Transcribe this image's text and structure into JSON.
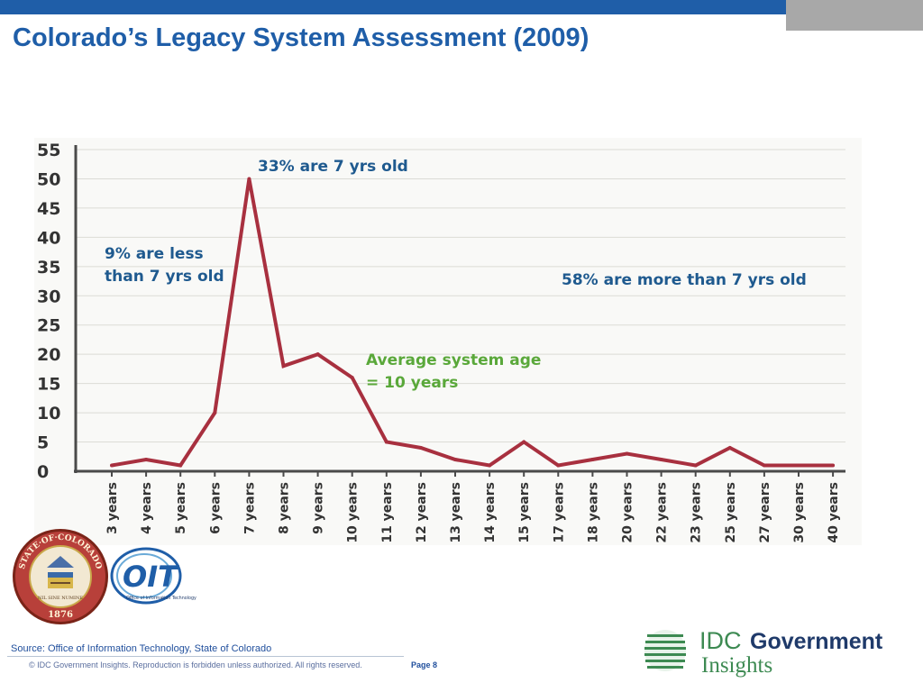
{
  "slide": {
    "title": "Colorado’s Legacy System Assessment (2009)",
    "source": "Source: Office of Information Technology, State of Colorado",
    "copyright": "© IDC Government Insights. Reproduction is forbidden unless authorized. All rights reserved.",
    "page": "Page 8"
  },
  "logos": {
    "seal_text_top": "STATE·OF·COLORADO",
    "seal_motto": "NIL SINE NUMINE",
    "seal_year": "1876",
    "oit_mark": "OIT",
    "oit_caption": "Office of Information Technology",
    "idc_line1": "IDC",
    "idc_line1b": "Government",
    "idc_line2": "Insights"
  },
  "colors": {
    "title_blue": "#1f5ea8",
    "line_red": "#a8303f",
    "annotation_blue": "#1f5a8f",
    "annotation_green": "#5aa83a",
    "idc_green": "#3d8a52"
  },
  "chart_data": {
    "type": "line",
    "categories": [
      "3 years",
      "4 years",
      "5 years",
      "6 years",
      "7 years",
      "8 years",
      "9 years",
      "10 years",
      "11 years",
      "12 years",
      "13 years",
      "14 years",
      "15 years",
      "17 years",
      "18 years",
      "20 years",
      "22 years",
      "23 years",
      "25 years",
      "27 years",
      "30 years",
      "40 years"
    ],
    "values": [
      1,
      2,
      1,
      10,
      50,
      18,
      20,
      16,
      5,
      4,
      2,
      1,
      5,
      1,
      2,
      3,
      2,
      1,
      4,
      1,
      1,
      1
    ],
    "ylim": [
      0,
      55
    ],
    "yticks": [
      0,
      5,
      10,
      15,
      20,
      25,
      30,
      35,
      40,
      45,
      50,
      55
    ],
    "grid": true,
    "annotations": {
      "peak": "33% are 7 yrs old",
      "less_line1": "9% are less",
      "less_line2": "than 7 yrs old",
      "more": "58% are more than 7 yrs old",
      "avg_line1": "Average system age",
      "avg_line2": "= 10 years"
    }
  }
}
